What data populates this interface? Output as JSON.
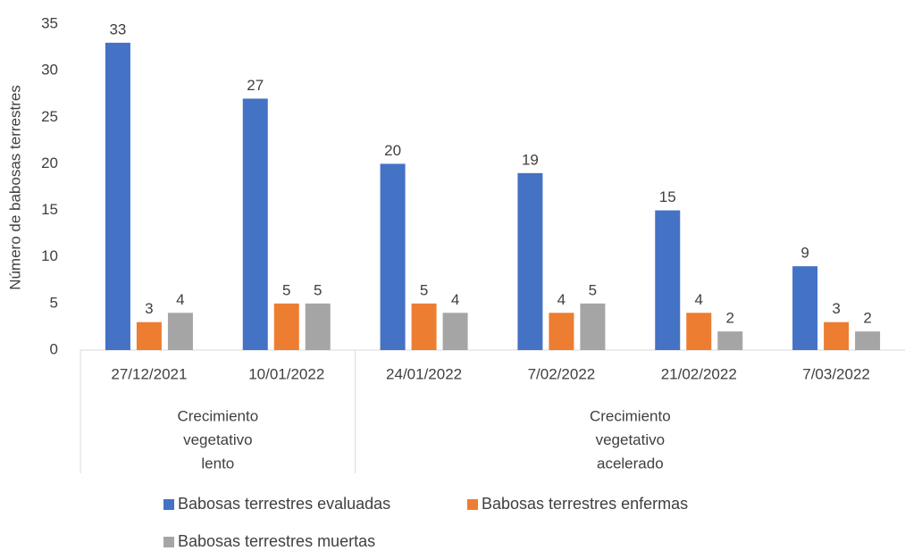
{
  "chart_data": {
    "type": "bar",
    "ylabel": "Número de babosas terrestres",
    "groups": [
      {
        "label": [
          "Crecimiento",
          "vegetativo",
          "lento"
        ],
        "categories": [
          "27/12/2021",
          "10/01/2022"
        ]
      },
      {
        "label": [
          "Crecimiento",
          "vegetativo",
          "acelerado"
        ],
        "categories": [
          "24/01/2022",
          "7/02/2022",
          "21/02/2022",
          "7/03/2022"
        ]
      }
    ],
    "series": [
      {
        "name": "Babosas terrestres evaluadas",
        "color": "#4472c4",
        "values": [
          33,
          27,
          20,
          19,
          15,
          9
        ]
      },
      {
        "name": "Babosas terrestres enfermas",
        "color": "#ed7d31",
        "values": [
          3,
          5,
          5,
          4,
          4,
          3
        ]
      },
      {
        "name": "Babosas terrestres muertas",
        "color": "#a5a5a5",
        "values": [
          4,
          5,
          4,
          5,
          2,
          2
        ]
      }
    ],
    "ylim": [
      0,
      35
    ],
    "yticks": [
      0,
      5,
      10,
      15,
      20,
      25,
      30,
      35
    ],
    "grid": false,
    "legend": "bottom",
    "data_labels": true
  }
}
